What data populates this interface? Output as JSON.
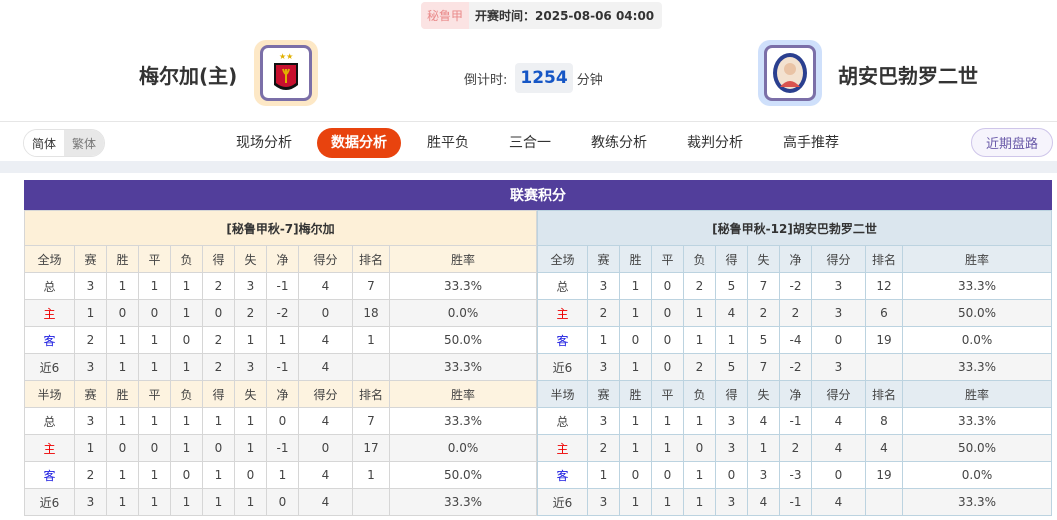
{
  "match": {
    "league": "秘鲁甲",
    "kickoff": "开赛时间：2025-08-06 04:00",
    "home": "梅尔加(主)",
    "away": "胡安巴勃罗二世",
    "countdown_label": "倒计时:",
    "countdown_value": "1254",
    "countdown_unit": "分钟",
    "home_logo_color": "#fde8c6",
    "away_logo_color": "#cfe0fb"
  },
  "nav": {
    "lang": [
      "简体",
      "繁体"
    ],
    "tabs": [
      "现场分析",
      "数据分析",
      "胜平负",
      "三合一",
      "教练分析",
      "裁判分析",
      "高手推荐"
    ],
    "active": "数据分析",
    "recent": "近期盘路"
  },
  "section_title": "联赛积分",
  "columns_full": [
    "全场",
    "赛",
    "胜",
    "平",
    "负",
    "得",
    "失",
    "净",
    "得分",
    "排名",
    "胜率"
  ],
  "columns_half": [
    "半场",
    "赛",
    "胜",
    "平",
    "负",
    "得",
    "失",
    "净",
    "得分",
    "排名",
    "胜率"
  ],
  "home_table": {
    "caption": "[秘鲁甲秋-7]梅尔加",
    "full": [
      [
        "总",
        "3",
        "1",
        "1",
        "1",
        "2",
        "3",
        "-1",
        "4",
        "7",
        "33.3%"
      ],
      [
        "主",
        "1",
        "0",
        "0",
        "1",
        "0",
        "2",
        "-2",
        "0",
        "18",
        "0.0%"
      ],
      [
        "客",
        "2",
        "1",
        "1",
        "0",
        "2",
        "1",
        "1",
        "4",
        "1",
        "50.0%"
      ],
      [
        "近6",
        "3",
        "1",
        "1",
        "1",
        "2",
        "3",
        "-1",
        "4",
        "",
        "33.3%"
      ]
    ],
    "half": [
      [
        "总",
        "3",
        "1",
        "1",
        "1",
        "1",
        "1",
        "0",
        "4",
        "7",
        "33.3%"
      ],
      [
        "主",
        "1",
        "0",
        "0",
        "1",
        "0",
        "1",
        "-1",
        "0",
        "17",
        "0.0%"
      ],
      [
        "客",
        "2",
        "1",
        "1",
        "0",
        "1",
        "0",
        "1",
        "4",
        "1",
        "50.0%"
      ],
      [
        "近6",
        "3",
        "1",
        "1",
        "1",
        "1",
        "1",
        "0",
        "4",
        "",
        "33.3%"
      ]
    ]
  },
  "away_table": {
    "caption": "[秘鲁甲秋-12]胡安巴勃罗二世",
    "full": [
      [
        "总",
        "3",
        "1",
        "0",
        "2",
        "5",
        "7",
        "-2",
        "3",
        "12",
        "33.3%"
      ],
      [
        "主",
        "2",
        "1",
        "0",
        "1",
        "4",
        "2",
        "2",
        "3",
        "6",
        "50.0%"
      ],
      [
        "客",
        "1",
        "0",
        "0",
        "1",
        "1",
        "5",
        "-4",
        "0",
        "19",
        "0.0%"
      ],
      [
        "近6",
        "3",
        "1",
        "0",
        "2",
        "5",
        "7",
        "-2",
        "3",
        "",
        "33.3%"
      ]
    ],
    "half": [
      [
        "总",
        "3",
        "1",
        "1",
        "1",
        "3",
        "4",
        "-1",
        "4",
        "8",
        "33.3%"
      ],
      [
        "主",
        "2",
        "1",
        "1",
        "0",
        "3",
        "1",
        "2",
        "4",
        "4",
        "50.0%"
      ],
      [
        "客",
        "1",
        "0",
        "0",
        "1",
        "0",
        "3",
        "-3",
        "0",
        "19",
        "0.0%"
      ],
      [
        "近6",
        "3",
        "1",
        "1",
        "1",
        "3",
        "4",
        "-1",
        "4",
        "",
        "33.3%"
      ]
    ]
  },
  "colors": {
    "title_bar": "#523e9b",
    "active_tab": "#e8430e",
    "home_label": "#ee0000",
    "away_label": "#1a1ae0",
    "countdown": "#1656c5"
  }
}
